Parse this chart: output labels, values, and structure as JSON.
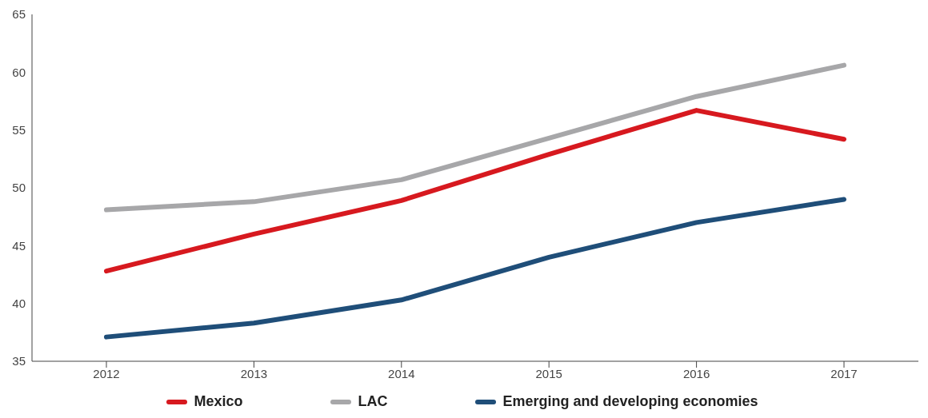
{
  "chart_data": {
    "type": "line",
    "categories": [
      "2012",
      "2013",
      "2014",
      "2015",
      "2016",
      "2017"
    ],
    "series": [
      {
        "name": "Mexico",
        "color": "#d7191f",
        "values": [
          42.8,
          46.0,
          48.9,
          52.9,
          56.7,
          54.2
        ]
      },
      {
        "name": "LAC",
        "color": "#a7a7a9",
        "values": [
          48.1,
          48.8,
          50.7,
          54.3,
          57.9,
          60.6
        ]
      },
      {
        "name": "Emerging and developing economies",
        "color": "#1f4e79",
        "values": [
          37.1,
          38.3,
          40.3,
          44.0,
          47.0,
          49.0
        ]
      }
    ],
    "ylim": [
      35,
      65
    ],
    "yticks": [
      35,
      40,
      45,
      50,
      55,
      60,
      65
    ],
    "grid": false,
    "legend": "bottom",
    "marker": "none",
    "line_style": "solid"
  }
}
